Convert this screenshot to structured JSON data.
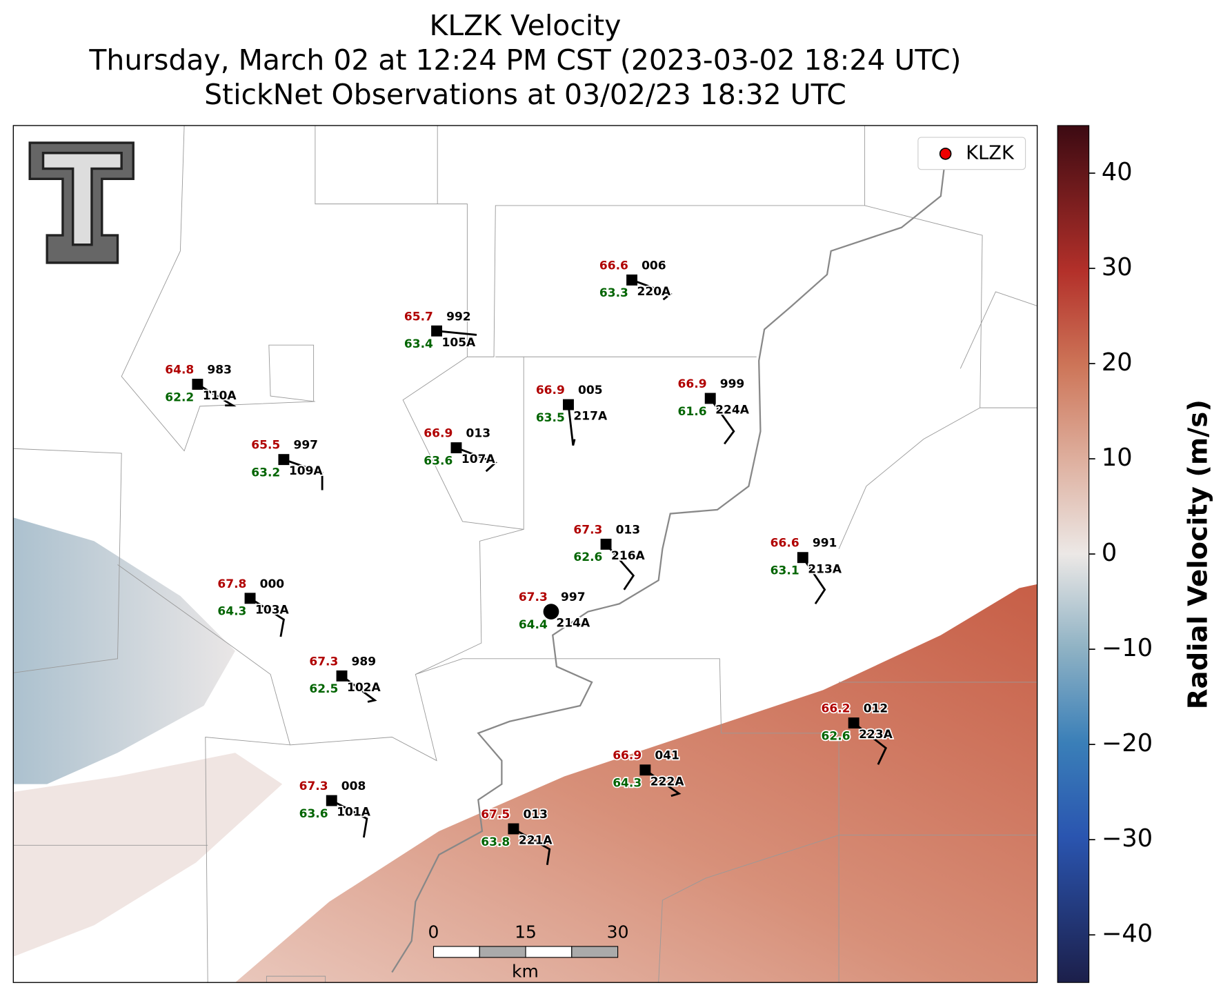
{
  "chart_data": {
    "type": "radar-map",
    "title": "KLZK Velocity",
    "subtitle": "Thursday, March 02 at 12:24 PM CST (2023-03-02 18:24 UTC)",
    "subtitle2": "StickNet Observations at 03/02/23 18:32 UTC",
    "legend": "KLZK",
    "colorbar": {
      "label": "Radial Velocity (m/s)",
      "ylim": [
        -45,
        45
      ],
      "yticks": [
        40,
        30,
        20,
        10,
        0,
        {
          "value": -10,
          "label": "−10"
        },
        {
          "value": -20,
          "label": "−20"
        },
        {
          "value": -30,
          "label": "−30"
        },
        {
          "value": -40,
          "label": "−40"
        }
      ]
    },
    "scale_bar": {
      "ticks": [
        0,
        15,
        30
      ],
      "unit": "km"
    },
    "stations": [
      {
        "id": "220A",
        "temperature": 66.6,
        "dewpoint": 63.3,
        "pressure": "006"
      },
      {
        "id": "105A",
        "temperature": 65.7,
        "dewpoint": 63.4,
        "pressure": "992"
      },
      {
        "id": "110A",
        "temperature": 64.8,
        "dewpoint": 62.2,
        "pressure": "983"
      },
      {
        "id": "217A",
        "temperature": 66.9,
        "dewpoint": 63.5,
        "pressure": "005"
      },
      {
        "id": "224A",
        "temperature": 66.9,
        "dewpoint": 61.6,
        "pressure": "999"
      },
      {
        "id": "107A",
        "temperature": 66.9,
        "dewpoint": 63.6,
        "pressure": "013"
      },
      {
        "id": "109A",
        "temperature": 65.5,
        "dewpoint": 63.2,
        "pressure": "997"
      },
      {
        "id": "216A",
        "temperature": 67.3,
        "dewpoint": 62.6,
        "pressure": "013"
      },
      {
        "id": "213A",
        "temperature": 66.6,
        "dewpoint": 63.1,
        "pressure": "991"
      },
      {
        "id": "103A",
        "temperature": 67.8,
        "dewpoint": 64.3,
        "pressure": "000"
      },
      {
        "id": "214A",
        "temperature": 67.3,
        "dewpoint": 64.4,
        "pressure": "997"
      },
      {
        "id": "102A",
        "temperature": 67.3,
        "dewpoint": 62.5,
        "pressure": "989"
      },
      {
        "id": "223A",
        "temperature": 66.2,
        "dewpoint": 62.6,
        "pressure": "012"
      },
      {
        "id": "222A",
        "temperature": 66.9,
        "dewpoint": 64.3,
        "pressure": "041"
      },
      {
        "id": "101A",
        "temperature": 67.3,
        "dewpoint": 63.6,
        "pressure": "008"
      },
      {
        "id": "221A",
        "temperature": 67.5,
        "dewpoint": 63.8,
        "pressure": "013"
      }
    ]
  }
}
